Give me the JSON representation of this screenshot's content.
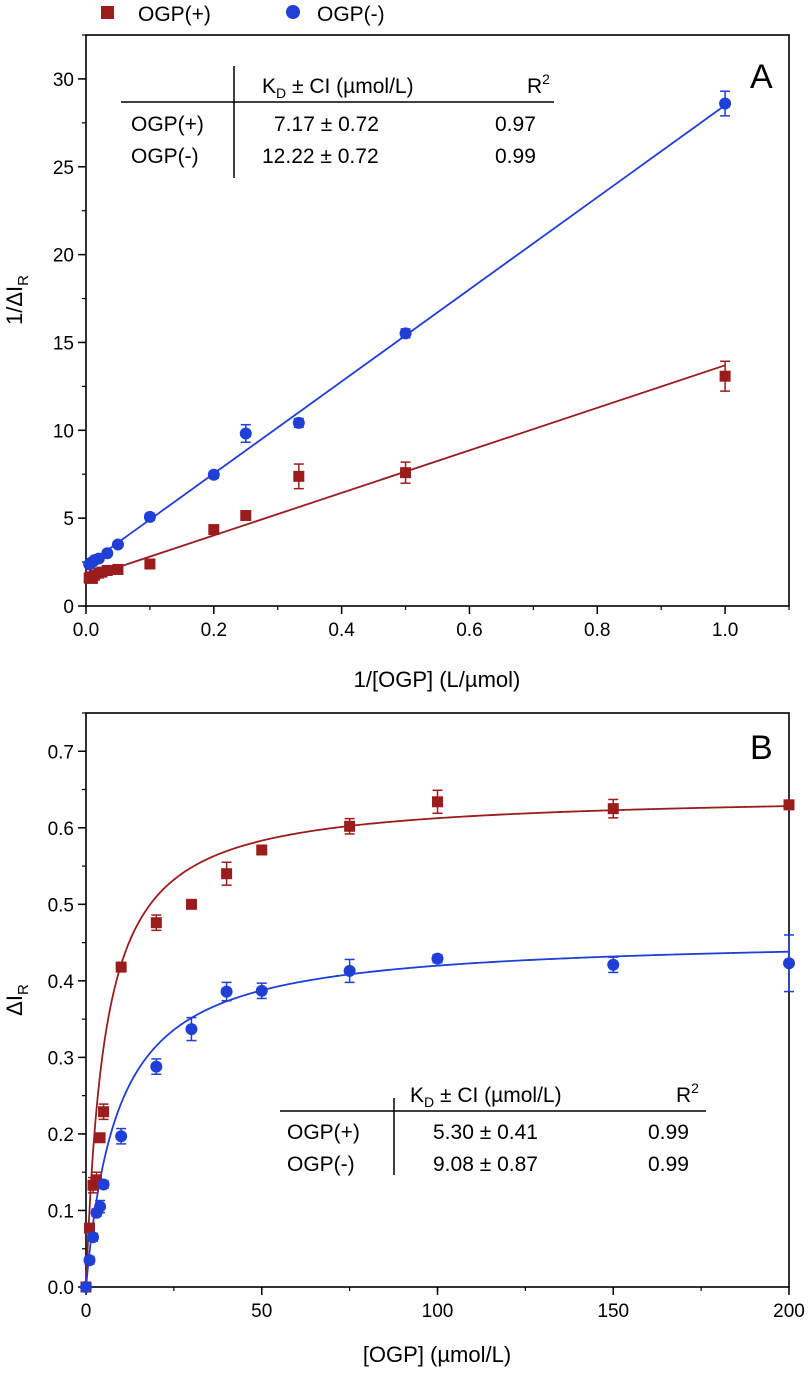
{
  "legend": {
    "items": [
      {
        "label": "OGP(+)",
        "marker": "square",
        "color": "#9b1c1c"
      },
      {
        "label": "OGP(-)",
        "marker": "circle",
        "color": "#1f3fd6"
      }
    ]
  },
  "colors": {
    "plus": "#9b1c1c",
    "minus": "#1f3fd6"
  },
  "chart_data": [
    {
      "panel": "A",
      "type": "scatter",
      "title": "",
      "xlabel": "1/[OGP] (L/µmol)",
      "ylabel": "1/ΔI",
      "ylabel_sub": "R",
      "xlim": [
        0.0,
        1.1
      ],
      "ylim": [
        0,
        32.5
      ],
      "xticks": [
        0.0,
        0.2,
        0.4,
        0.6,
        0.8,
        1.0
      ],
      "xtick_labels": [
        "0.0",
        "0.2",
        "0.4",
        "0.6",
        "0.8",
        "1.0"
      ],
      "yticks": [
        0,
        5,
        10,
        15,
        20,
        25,
        30
      ],
      "ytick_labels": [
        "0",
        "5",
        "10",
        "15",
        "20",
        "25",
        "30"
      ],
      "series": [
        {
          "name": "OGP(+)",
          "marker": "square",
          "x": [
            0.005,
            0.0067,
            0.01,
            0.0133,
            0.02,
            0.025,
            0.0333,
            0.05,
            0.1,
            0.2,
            0.25,
            0.333,
            0.5,
            1.0
          ],
          "y": [
            1.59,
            1.66,
            1.57,
            1.75,
            1.87,
            1.93,
            2.02,
            2.08,
            2.39,
            4.35,
            5.15,
            7.38,
            7.59,
            13.08
          ],
          "err": [
            0.1,
            0.1,
            0.1,
            0.1,
            0.1,
            0.1,
            0.1,
            0.1,
            0.15,
            0.2,
            0.2,
            0.7,
            0.6,
            0.85
          ],
          "fit": {
            "x": [
              0.0,
              1.0
            ],
            "y": [
              1.6,
              13.7
            ]
          }
        },
        {
          "name": "OGP(-)",
          "marker": "circle",
          "x": [
            0.005,
            0.0067,
            0.01,
            0.0133,
            0.02,
            0.0333,
            0.05,
            0.1,
            0.2,
            0.25,
            0.333,
            0.5,
            1.0
          ],
          "y": [
            2.37,
            2.43,
            2.5,
            2.61,
            2.7,
            3.0,
            3.5,
            5.07,
            7.47,
            9.82,
            10.42,
            15.52,
            28.6
          ],
          "err": [
            0.1,
            0.1,
            0.1,
            0.1,
            0.1,
            0.15,
            0.15,
            0.2,
            0.2,
            0.5,
            0.25,
            0.25,
            0.7
          ],
          "fit": {
            "x": [
              0.0,
              1.0
            ],
            "y": [
              2.3,
              28.5
            ]
          }
        }
      ],
      "table": {
        "headers": [
          "",
          "K",
          "D",
          " ± CI (µmol/L)",
          "R",
          "2"
        ],
        "rows": [
          {
            "label": "OGP(+)",
            "kd": "7.17 ± 0.72",
            "r2": "0.97"
          },
          {
            "label": "OGP(-)",
            "kd": "12.22 ± 0.72",
            "r2": "0.99"
          }
        ]
      }
    },
    {
      "panel": "B",
      "type": "scatter",
      "title": "",
      "xlabel": "[OGP] (µmol/L)",
      "ylabel": "ΔI",
      "ylabel_sub": "R",
      "xlim": [
        0,
        200
      ],
      "ylim": [
        0,
        0.75
      ],
      "xticks": [
        0,
        50,
        100,
        150,
        200
      ],
      "xtick_labels": [
        "0",
        "50",
        "100",
        "150",
        "200"
      ],
      "yticks": [
        0.0,
        0.1,
        0.2,
        0.3,
        0.4,
        0.5,
        0.6,
        0.7
      ],
      "ytick_labels": [
        "0.0",
        "0.1",
        "0.2",
        "0.3",
        "0.4",
        "0.5",
        "0.6",
        "0.7"
      ],
      "series": [
        {
          "name": "OGP(+)",
          "marker": "square",
          "x": [
            0,
            1,
            2,
            3,
            4,
            5,
            10,
            20,
            30,
            40,
            50,
            75,
            100,
            150,
            200
          ],
          "y": [
            0.0,
            0.077,
            0.133,
            0.14,
            0.195,
            0.229,
            0.418,
            0.476,
            0.5,
            0.54,
            0.571,
            0.602,
            0.634,
            0.625,
            0.63
          ],
          "err": [
            0.0,
            0.005,
            0.01,
            0.01,
            0.005,
            0.01,
            0.006,
            0.01,
            0.005,
            0.015,
            0.005,
            0.01,
            0.015,
            0.012,
            0.005
          ],
          "fit": {
            "model": "hyperbola",
            "bmax": 0.645,
            "kd": 5.3
          }
        },
        {
          "name": "OGP(-)",
          "marker": "circle",
          "x": [
            0,
            1,
            2,
            3,
            4,
            5,
            10,
            20,
            30,
            40,
            50,
            75,
            100,
            150,
            200
          ],
          "y": [
            0.0,
            0.035,
            0.065,
            0.097,
            0.105,
            0.134,
            0.197,
            0.288,
            0.337,
            0.386,
            0.387,
            0.413,
            0.429,
            0.421,
            0.423
          ],
          "err": [
            0.0,
            0.005,
            0.005,
            0.005,
            0.008,
            0.005,
            0.01,
            0.01,
            0.015,
            0.012,
            0.01,
            0.015,
            0.005,
            0.01,
            0.037
          ],
          "fit": {
            "model": "hyperbola",
            "bmax": 0.458,
            "kd": 9.08
          }
        }
      ],
      "table": {
        "headers": [
          "",
          "K",
          "D",
          " ± CI (µmol/L)",
          "R",
          "2"
        ],
        "rows": [
          {
            "label": "OGP(+)",
            "kd": "5.30 ± 0.41",
            "r2": "0.99"
          },
          {
            "label": "OGP(-)",
            "kd": "9.08 ± 0.87",
            "r2": "0.99"
          }
        ]
      }
    }
  ]
}
